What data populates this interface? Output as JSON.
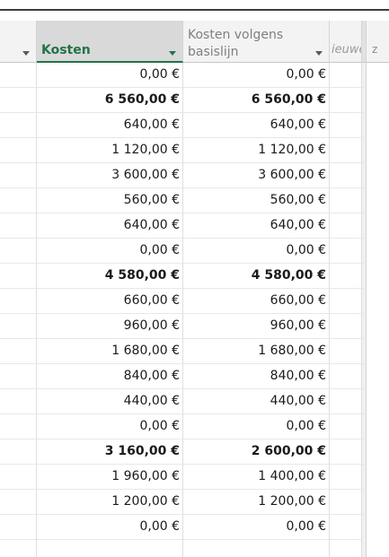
{
  "columns": {
    "kosten": "Kosten",
    "basislijn": "Kosten volgens basislijn",
    "truncated": "ieuwe",
    "next": "z"
  },
  "rows": [
    {
      "kosten": "0,00 €",
      "basislijn": "0,00 €",
      "bold": false
    },
    {
      "kosten": "6 560,00 €",
      "basislijn": "6 560,00 €",
      "bold": true
    },
    {
      "kosten": "640,00 €",
      "basislijn": "640,00 €",
      "bold": false
    },
    {
      "kosten": "1 120,00 €",
      "basislijn": "1 120,00 €",
      "bold": false
    },
    {
      "kosten": "3 600,00 €",
      "basislijn": "3 600,00 €",
      "bold": false
    },
    {
      "kosten": "560,00 €",
      "basislijn": "560,00 €",
      "bold": false
    },
    {
      "kosten": "640,00 €",
      "basislijn": "640,00 €",
      "bold": false
    },
    {
      "kosten": "0,00 €",
      "basislijn": "0,00 €",
      "bold": false
    },
    {
      "kosten": "4 580,00 €",
      "basislijn": "4 580,00 €",
      "bold": true
    },
    {
      "kosten": "660,00 €",
      "basislijn": "660,00 €",
      "bold": false
    },
    {
      "kosten": "960,00 €",
      "basislijn": "960,00 €",
      "bold": false
    },
    {
      "kosten": "1 680,00 €",
      "basislijn": "1 680,00 €",
      "bold": false
    },
    {
      "kosten": "840,00 €",
      "basislijn": "840,00 €",
      "bold": false
    },
    {
      "kosten": "440,00 €",
      "basislijn": "440,00 €",
      "bold": false
    },
    {
      "kosten": "0,00 €",
      "basislijn": "0,00 €",
      "bold": false
    },
    {
      "kosten": "3 160,00 €",
      "basislijn": "2 600,00 €",
      "bold": true
    },
    {
      "kosten": "1 960,00 €",
      "basislijn": "1 400,00 €",
      "bold": false
    },
    {
      "kosten": "1 200,00 €",
      "basislijn": "1 200,00 €",
      "bold": false
    },
    {
      "kosten": "0,00 €",
      "basislijn": "0,00 €",
      "bold": false
    }
  ]
}
